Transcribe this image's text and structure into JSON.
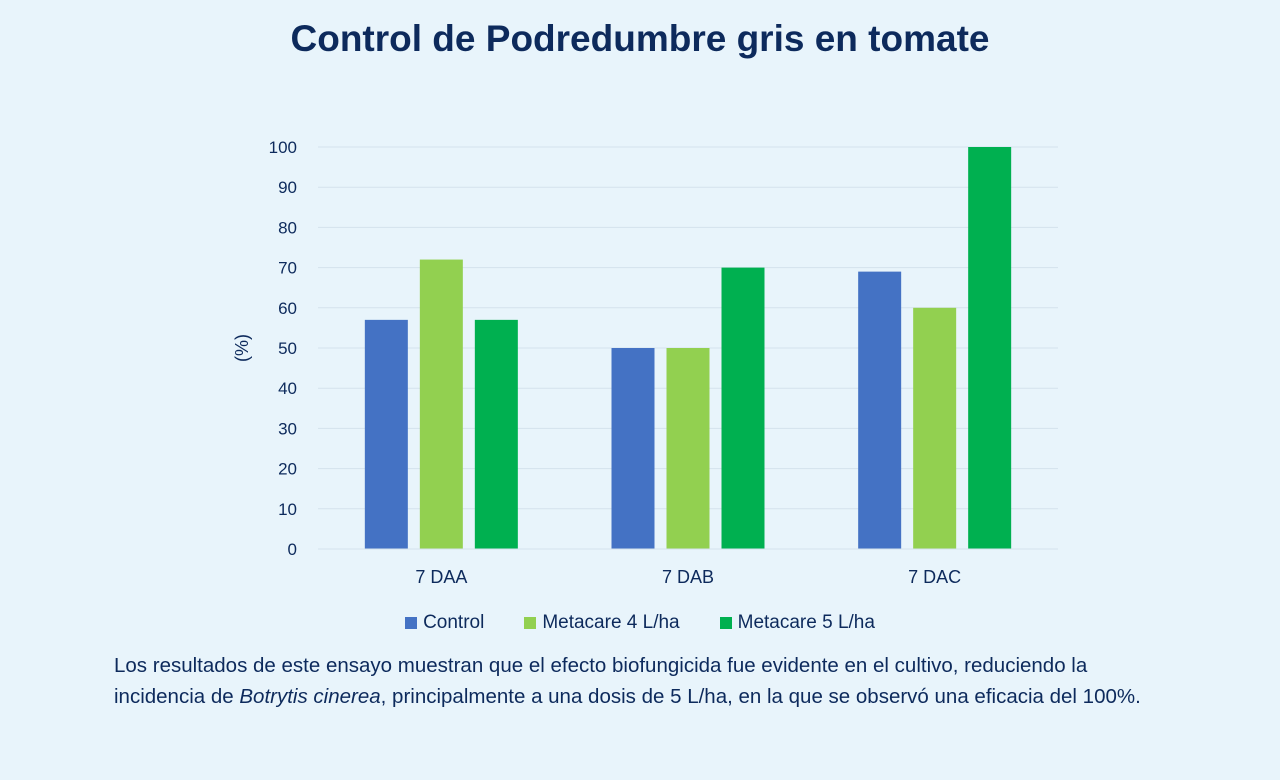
{
  "chart_data": {
    "type": "bar",
    "title": "Control de Podredumbre gris en tomate",
    "ylabel": "(%)",
    "xlabel": "",
    "categories": [
      "7 DAA",
      "7 DAB",
      "7 DAC"
    ],
    "series": [
      {
        "name": "Control",
        "values": [
          57,
          50,
          69
        ],
        "color": "#4472c4"
      },
      {
        "name": "Metacare 4 L/ha",
        "values": [
          72,
          50,
          60
        ],
        "color": "#92d050"
      },
      {
        "name": "Metacare 5 L/ha",
        "values": [
          57,
          70,
          100
        ],
        "color": "#00b050"
      }
    ],
    "ylim": [
      0,
      100
    ],
    "yticks": [
      0,
      10,
      20,
      30,
      40,
      50,
      60,
      70,
      80,
      90,
      100
    ],
    "grid": true,
    "legend_position": "bottom"
  },
  "caption": {
    "part1": "Los resultados de este ensayo muestran que el efecto biofungicida fue evidente en el cultivo, reduciendo la incidencia de ",
    "italic": "Botrytis cinerea",
    "part2": ", principalmente a una dosis de 5 L/ha, en la que se observó una eficacia del 100%."
  }
}
